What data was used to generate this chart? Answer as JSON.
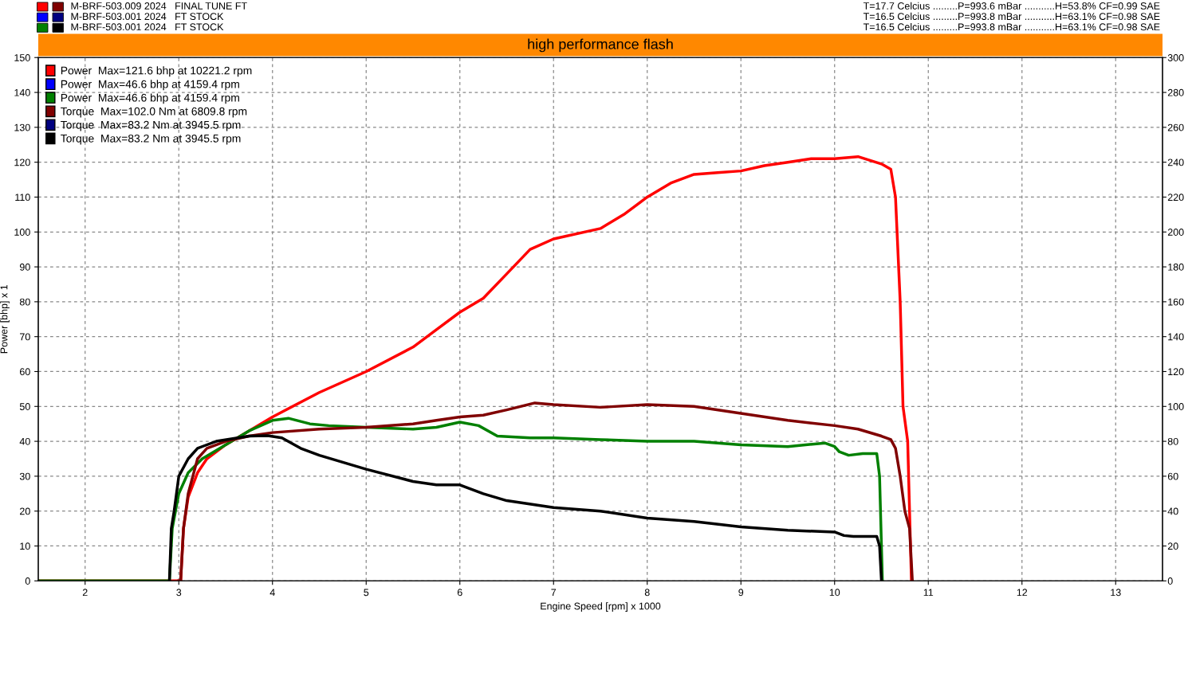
{
  "chart_data": {
    "type": "line",
    "title": "high performance flash",
    "xlabel": "Engine Speed [rpm] x 1000",
    "ylabel": "Power [bhp] x 1",
    "annotations": [
      "M-BRF-503.009 2024   FINAL TUNE FT",
      "M-BRF-503.001 2024   FT STOCK",
      "M-BRF-503.001 2024   FT STOCK",
      "T=17.7 Celcius .........P=993.6 mBar ...........H=53.8% CF=0.99 SAE",
      "T=16.5 Celcius .........P=993.8 mBar ...........H=63.1% CF=0.98 SAE",
      "T=16.5 Celcius .........P=993.8 mBar ...........H=63.1% CF=0.98 SAE"
    ],
    "xlim": [
      1.5,
      13.5
    ],
    "xticks": [
      2,
      3,
      4,
      5,
      6,
      7,
      8,
      9,
      10,
      11,
      12,
      13
    ],
    "ylim": [
      0,
      150
    ],
    "yticks": [
      0,
      10,
      20,
      30,
      40,
      50,
      60,
      70,
      80,
      90,
      100,
      110,
      120,
      130,
      140,
      150
    ],
    "y2lim": [
      0,
      300
    ],
    "y2ticks": [
      0,
      20,
      40,
      60,
      80,
      100,
      120,
      140,
      160,
      180,
      200,
      220,
      240,
      260,
      280,
      300
    ],
    "grid": true,
    "legend": "top left",
    "line_style": "solid",
    "marker": "none",
    "series": [
      {
        "name": "Power  Max=121.6 bhp at 10221.2 rpm",
        "color": "#ff0000",
        "x": [
          1.5,
          3.0,
          3.02,
          3.05,
          3.1,
          3.2,
          3.3,
          3.5,
          3.75,
          4.0,
          4.5,
          5.0,
          5.5,
          5.75,
          6.0,
          6.25,
          6.5,
          6.75,
          7.0,
          7.5,
          7.75,
          8.0,
          8.25,
          8.5,
          8.75,
          9.0,
          9.25,
          9.5,
          9.75,
          10.0,
          10.25,
          10.5,
          10.6,
          10.65,
          10.7,
          10.73,
          10.78,
          10.8,
          10.82
        ],
        "values": [
          0,
          0,
          0,
          15,
          24,
          31,
          35,
          39,
          43,
          47,
          54,
          60,
          67,
          72,
          77,
          81,
          88,
          95,
          98,
          101,
          105,
          110,
          114,
          116.5,
          117,
          117.5,
          119,
          120,
          121,
          121,
          121.6,
          119.5,
          118,
          110,
          80,
          50,
          40,
          20,
          0
        ]
      },
      {
        "name": "Power  Max=46.6 bhp at 4159.4 rpm",
        "color": "#0000ff"
      },
      {
        "name": "Power  Max=46.6 bhp at 4159.4 rpm",
        "color": "#008000",
        "x": [
          1.5,
          2.9,
          2.93,
          3.0,
          3.1,
          3.25,
          3.5,
          3.75,
          4.0,
          4.17,
          4.4,
          4.6,
          5.0,
          5.5,
          5.75,
          6.0,
          6.2,
          6.4,
          6.75,
          7.0,
          7.5,
          8.0,
          8.5,
          9.0,
          9.5,
          9.9,
          10.0,
          10.05,
          10.15,
          10.3,
          10.45,
          10.48,
          10.5,
          10.51
        ],
        "values": [
          0,
          0,
          15,
          25,
          31,
          35,
          39,
          43,
          46,
          46.6,
          45,
          44.5,
          44,
          43.5,
          44,
          45.5,
          44.5,
          41.5,
          41,
          41,
          40.5,
          40,
          40,
          39,
          38.5,
          39.5,
          38.5,
          37,
          36,
          36.5,
          36.5,
          30,
          10,
          0
        ]
      },
      {
        "name": "Torque  Max=102.0 Nm at 6809.8 rpm",
        "color": "#800000",
        "axis": "y2",
        "x": [
          3.0,
          3.02,
          3.05,
          3.1,
          3.2,
          3.3,
          3.5,
          3.75,
          4.0,
          4.5,
          5.0,
          5.5,
          5.75,
          6.0,
          6.25,
          6.5,
          6.8,
          7.0,
          7.5,
          8.0,
          8.5,
          9.0,
          9.5,
          10.0,
          10.25,
          10.5,
          10.6,
          10.65,
          10.7,
          10.75,
          10.8,
          10.82,
          10.83
        ],
        "values": [
          0,
          0,
          30,
          50,
          70,
          76,
          80,
          83,
          85,
          87,
          88,
          90,
          92,
          94,
          95,
          98,
          102,
          101,
          99.5,
          101,
          100,
          96,
          92,
          89,
          87,
          83,
          81,
          76,
          60,
          40,
          30,
          10,
          0
        ]
      },
      {
        "name": "Torque  Max=83.2 Nm at 3945.5 rpm",
        "color": "#000080",
        "axis": "y2"
      },
      {
        "name": "Torque  Max=83.2 Nm at 3945.5 rpm",
        "color": "#000000",
        "axis": "y2",
        "x": [
          2.9,
          2.92,
          2.95,
          3.0,
          3.1,
          3.2,
          3.4,
          3.75,
          3.95,
          4.1,
          4.3,
          4.5,
          5.0,
          5.5,
          5.75,
          6.0,
          6.25,
          6.5,
          7.0,
          7.5,
          8.0,
          8.5,
          9.0,
          9.5,
          10.0,
          10.1,
          10.2,
          10.45,
          10.48,
          10.5
        ],
        "values": [
          0,
          30,
          40,
          60,
          70,
          76,
          80,
          83,
          83.2,
          82,
          76,
          72,
          64,
          57,
          55,
          55,
          50,
          46,
          42,
          40,
          36,
          34,
          31,
          29,
          28,
          26,
          25.5,
          25.5,
          20,
          0
        ]
      }
    ]
  }
}
